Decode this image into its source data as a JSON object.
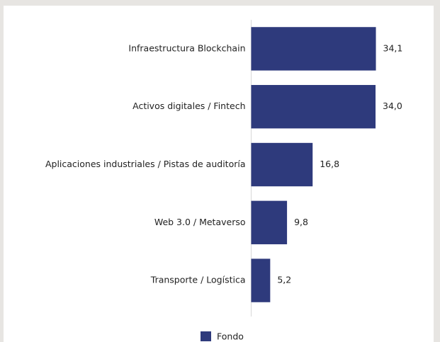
{
  "chart_data": {
    "type": "bar",
    "orientation": "horizontal",
    "categories": [
      "Infraestructura Blockchain",
      "Activos digitales / Fintech",
      "Aplicaciones industriales / Pistas de auditoría",
      "Web 3.0 / Metaverso",
      "Transporte / Logística"
    ],
    "series": [
      {
        "name": "Fondo",
        "color": "#2e3a7c",
        "values": [
          34.1,
          34.0,
          16.8,
          9.8,
          5.2
        ],
        "value_labels": [
          "34,1",
          "34,0",
          "16,8",
          "9,8",
          "5,2"
        ]
      }
    ],
    "xlim": [
      0,
      40
    ],
    "legend": "bottom"
  }
}
